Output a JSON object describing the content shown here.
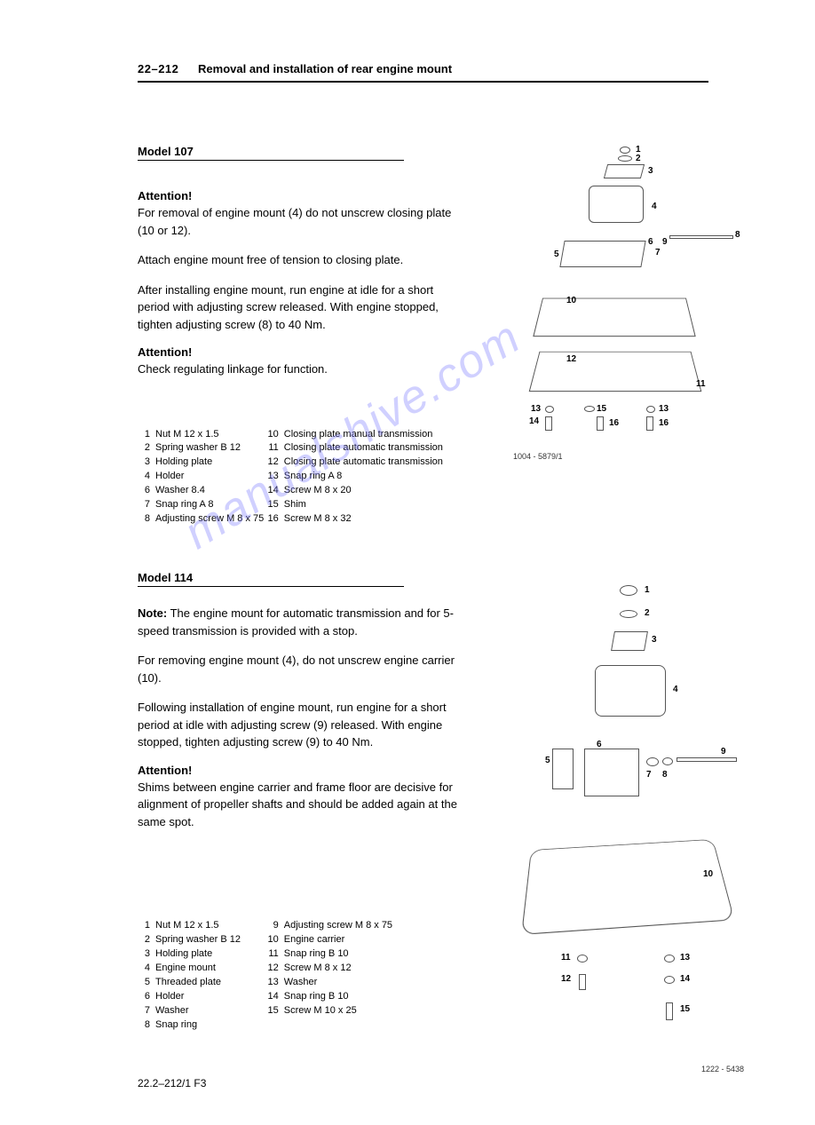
{
  "header": {
    "section_number": "22–212",
    "title": "Removal and installation of rear engine mount"
  },
  "watermark_text": "manualshive.com",
  "model107": {
    "heading": "Model 107",
    "attention_label": "Attention!",
    "para1": "For removal of engine mount (4) do not unscrew closing plate (10 or 12).",
    "para2": "Attach engine mount free of tension to closing plate.",
    "para3": "After installing engine mount, run engine at idle for a short period with adjusting screw released. With engine stopped, tighten adjusting screw (8) to 40 Nm.",
    "para4": "Check regulating linkage for function.",
    "figure_id": "1004 - 5879/1",
    "parts": [
      {
        "n": "1",
        "t": "Nut M 12 x 1.5"
      },
      {
        "n": "2",
        "t": "Spring washer B 12"
      },
      {
        "n": "3",
        "t": "Holding plate"
      },
      {
        "n": "4",
        "t": "Holder"
      },
      {
        "n": "6",
        "t": "Washer 8.4"
      },
      {
        "n": "7",
        "t": "Snap ring A 8"
      },
      {
        "n": "8",
        "t": "Adjusting screw M 8 x 75"
      }
    ],
    "parts_b": [
      {
        "n": "10",
        "t": "Closing plate manual transmission"
      },
      {
        "n": "11",
        "t": "Closing plate automatic transmission"
      },
      {
        "n": "12",
        "t": "Closing plate automatic transmission"
      },
      {
        "n": "13",
        "t": "Snap ring A 8"
      },
      {
        "n": "14",
        "t": "Screw M 8 x 20"
      },
      {
        "n": "15",
        "t": "Shim"
      },
      {
        "n": "16",
        "t": "Screw M 8 x 32"
      }
    ]
  },
  "model114": {
    "heading": "Model 114",
    "note_label": "Note:",
    "para1": " The engine mount for automatic transmission and for 5-speed transmission is provided with a stop.",
    "para2": "For removing engine mount (4), do not unscrew engine carrier (10).",
    "para3": "Following installation of engine mount, run engine for a short period at idle with adjusting screw (9) released. With engine stopped, tighten adjusting screw (9) to 40 Nm.",
    "attention_label": "Attention!",
    "para4": "Shims between engine carrier and frame floor are decisive for alignment of propeller shafts and should be added again at the same spot.",
    "figure_id": "1222 - 5438",
    "parts": [
      {
        "n": "1",
        "t": "Nut M 12 x 1.5"
      },
      {
        "n": "2",
        "t": "Spring washer B 12"
      },
      {
        "n": "3",
        "t": "Holding plate"
      },
      {
        "n": "4",
        "t": "Engine mount"
      },
      {
        "n": "5",
        "t": "Threaded plate"
      },
      {
        "n": "6",
        "t": "Holder"
      },
      {
        "n": "7",
        "t": "Washer"
      },
      {
        "n": "8",
        "t": "Snap ring"
      }
    ],
    "parts_b": [
      {
        "n": "9",
        "t": "Adjusting screw M 8 x 75"
      },
      {
        "n": "10",
        "t": "Engine carrier"
      },
      {
        "n": "11",
        "t": "Snap ring B 10"
      },
      {
        "n": "12",
        "t": "Screw M 8 x 12"
      },
      {
        "n": "13",
        "t": "Washer"
      },
      {
        "n": "14",
        "t": "Snap ring B 10"
      },
      {
        "n": "15",
        "t": "Screw M 10 x 25"
      }
    ]
  },
  "footer": "22.2–212/1   F3"
}
